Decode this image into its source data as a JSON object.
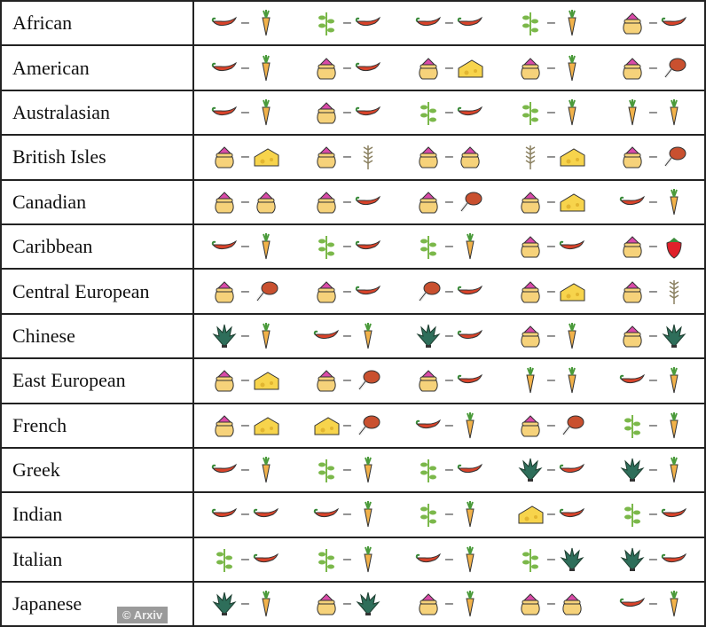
{
  "watermark": "© Arxiv",
  "icon_colors": {
    "chili": "#d9432a",
    "carrot": "#f2b24a",
    "herb": "#7bb84a",
    "pot": "#f6d27a",
    "pot_top": "#d94aa8",
    "cheese": "#f7d44c",
    "meat": "#c9502f",
    "wheat": "#8a8060",
    "leafy": "#2e6e5a",
    "strawberry": "#e0202a"
  },
  "rows": [
    {
      "label": "African",
      "pairs": [
        [
          "chili",
          "carrot"
        ],
        [
          "herb",
          "chili"
        ],
        [
          "chili",
          "chili"
        ],
        [
          "herb",
          "carrot"
        ],
        [
          "pot",
          "chili"
        ]
      ]
    },
    {
      "label": "American",
      "pairs": [
        [
          "chili",
          "carrot"
        ],
        [
          "pot",
          "chili"
        ],
        [
          "pot",
          "cheese"
        ],
        [
          "pot",
          "carrot"
        ],
        [
          "pot",
          "meat"
        ]
      ]
    },
    {
      "label": "Australasian",
      "pairs": [
        [
          "chili",
          "carrot"
        ],
        [
          "pot",
          "chili"
        ],
        [
          "herb",
          "chili"
        ],
        [
          "herb",
          "carrot"
        ],
        [
          "carrot",
          "carrot"
        ]
      ]
    },
    {
      "label": "British Isles",
      "pairs": [
        [
          "pot",
          "cheese"
        ],
        [
          "pot",
          "wheat"
        ],
        [
          "pot",
          "pot"
        ],
        [
          "wheat",
          "cheese"
        ],
        [
          "pot",
          "meat"
        ]
      ]
    },
    {
      "label": "Canadian",
      "pairs": [
        [
          "pot",
          "pot"
        ],
        [
          "pot",
          "chili"
        ],
        [
          "pot",
          "meat"
        ],
        [
          "pot",
          "cheese"
        ],
        [
          "chili",
          "carrot"
        ]
      ]
    },
    {
      "label": "Caribbean",
      "pairs": [
        [
          "chili",
          "carrot"
        ],
        [
          "herb",
          "chili"
        ],
        [
          "herb",
          "carrot"
        ],
        [
          "pot",
          "chili"
        ],
        [
          "pot",
          "strawberry"
        ]
      ]
    },
    {
      "label": "Central European",
      "pairs": [
        [
          "pot",
          "meat"
        ],
        [
          "pot",
          "chili"
        ],
        [
          "meat",
          "chili"
        ],
        [
          "pot",
          "cheese"
        ],
        [
          "pot",
          "wheat"
        ]
      ]
    },
    {
      "label": "Chinese",
      "pairs": [
        [
          "leafy",
          "carrot"
        ],
        [
          "chili",
          "carrot"
        ],
        [
          "leafy",
          "chili"
        ],
        [
          "pot",
          "carrot"
        ],
        [
          "pot",
          "leafy"
        ]
      ]
    },
    {
      "label": "East European",
      "pairs": [
        [
          "pot",
          "cheese"
        ],
        [
          "pot",
          "meat"
        ],
        [
          "pot",
          "chili"
        ],
        [
          "carrot",
          "carrot"
        ],
        [
          "chili",
          "carrot"
        ]
      ]
    },
    {
      "label": "French",
      "pairs": [
        [
          "pot",
          "cheese"
        ],
        [
          "cheese",
          "meat"
        ],
        [
          "chili",
          "carrot"
        ],
        [
          "pot",
          "meat"
        ],
        [
          "herb",
          "carrot"
        ]
      ]
    },
    {
      "label": "Greek",
      "pairs": [
        [
          "chili",
          "carrot"
        ],
        [
          "herb",
          "carrot"
        ],
        [
          "herb",
          "chili"
        ],
        [
          "leafy",
          "chili"
        ],
        [
          "leafy",
          "carrot"
        ]
      ]
    },
    {
      "label": "Indian",
      "pairs": [
        [
          "chili",
          "chili"
        ],
        [
          "chili",
          "carrot"
        ],
        [
          "herb",
          "carrot"
        ],
        [
          "cheese",
          "chili"
        ],
        [
          "herb",
          "chili"
        ]
      ]
    },
    {
      "label": "Italian",
      "pairs": [
        [
          "herb",
          "chili"
        ],
        [
          "herb",
          "carrot"
        ],
        [
          "chili",
          "carrot"
        ],
        [
          "herb",
          "leafy"
        ],
        [
          "leafy",
          "chili"
        ]
      ]
    },
    {
      "label": "Japanese",
      "pairs": [
        [
          "leafy",
          "carrot"
        ],
        [
          "pot",
          "leafy"
        ],
        [
          "pot",
          "carrot"
        ],
        [
          "pot",
          "pot"
        ],
        [
          "chili",
          "carrot"
        ]
      ]
    }
  ]
}
